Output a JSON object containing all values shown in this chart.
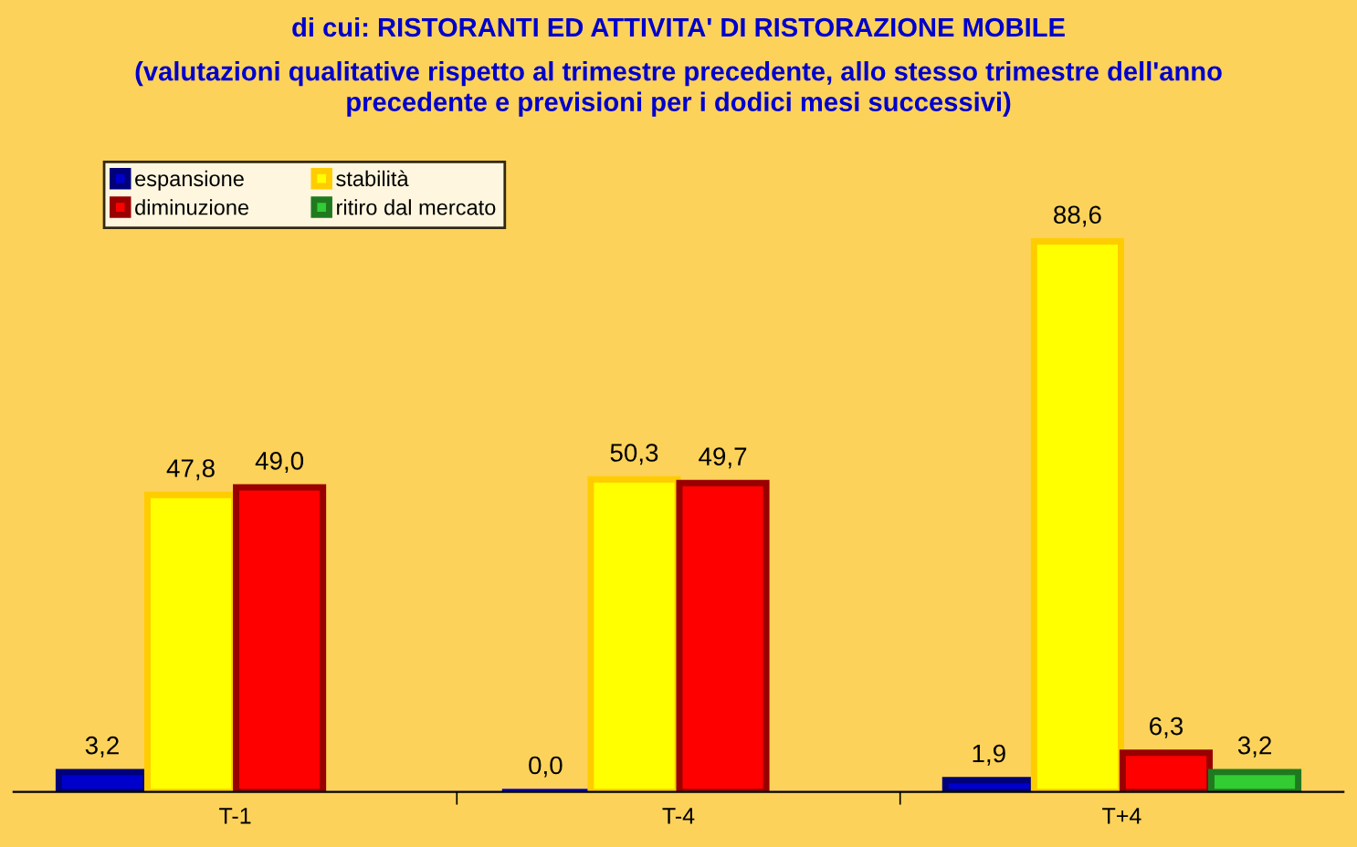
{
  "chart_data": {
    "type": "bar",
    "title": "di cui: RISTORANTI ED ATTIVITA' DI RISTORAZIONE MOBILE",
    "subtitle": "(valutazioni qualitative rispetto al trimestre precedente, allo stesso trimestre dell'anno\nprecedente e previsioni per i dodici mesi successivi)",
    "categories": [
      "T-1",
      "T-4",
      "T+4"
    ],
    "series": [
      {
        "name": "espansione",
        "color": "#0000cc",
        "values": [
          3.2,
          0.0,
          1.9
        ],
        "value_labels": [
          "3,2",
          "0,0",
          "1,9"
        ]
      },
      {
        "name": "stabilità",
        "color": "#ffff00",
        "values": [
          47.8,
          50.3,
          88.6
        ],
        "value_labels": [
          "47,8",
          "50,3",
          "88,6"
        ]
      },
      {
        "name": "diminuzione",
        "color": "#ff0000",
        "values": [
          49.0,
          49.7,
          6.3
        ],
        "value_labels": [
          "49,0",
          "49,7",
          "6,3"
        ]
      },
      {
        "name": "ritiro dal mercato",
        "color": "#33cc33",
        "values": [
          null,
          null,
          3.2
        ],
        "value_labels": [
          null,
          null,
          "3,2"
        ]
      }
    ],
    "legend": "top left",
    "grid": false
  }
}
